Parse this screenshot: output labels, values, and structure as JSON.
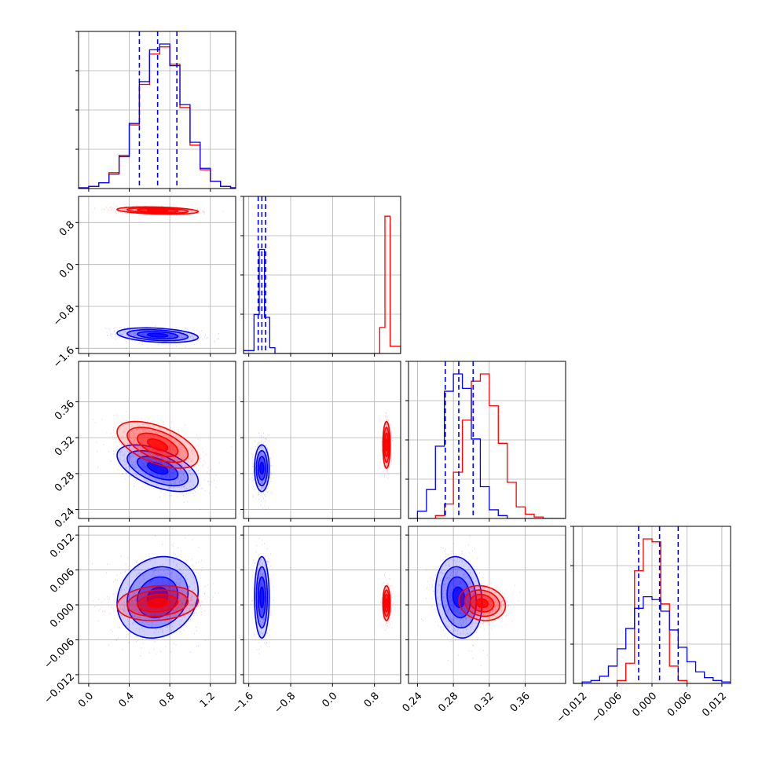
{
  "colors": {
    "series_a": "#0000ff",
    "series_b": "#ff0000",
    "grid": "#b0b0b0",
    "axes": "#000000"
  },
  "chart_data": {
    "type": "corner",
    "title": "",
    "grid": true,
    "parameters": [
      {
        "range": [
          -0.1,
          1.45
        ],
        "ticks": [
          0.0,
          0.4,
          0.8,
          1.2
        ],
        "tick_labels": [
          "0.0",
          "0.4",
          "0.8",
          "1.2"
        ]
      },
      {
        "range": [
          -1.7,
          1.3
        ],
        "ticks": [
          -1.6,
          -0.8,
          0.0,
          0.8
        ],
        "tick_labels": [
          "−1.6",
          "−0.8",
          "0.0",
          "0.8"
        ]
      },
      {
        "range": [
          0.23,
          0.405
        ],
        "ticks": [
          0.24,
          0.28,
          0.32,
          0.36
        ],
        "tick_labels": [
          "0.24",
          "0.28",
          "0.32",
          "0.36"
        ]
      },
      {
        "range": [
          -0.0135,
          0.0135
        ],
        "ticks": [
          -0.012,
          -0.006,
          0.0,
          0.006,
          0.012
        ],
        "tick_labels": [
          "−0.012",
          "−0.006",
          "0.000",
          "0.006",
          "0.012"
        ]
      }
    ],
    "series": [
      {
        "color": "#0000ff",
        "means": [
          0.68,
          -1.35,
          0.286,
          0.0013
        ],
        "sds": [
          0.2,
          0.07,
          0.013,
          0.0035
        ],
        "quantiles": [
          [
            0.5,
            0.68,
            0.87
          ],
          [
            -1.42,
            -1.35,
            -1.28
          ],
          [
            0.271,
            0.286,
            0.302
          ],
          [
            -0.0023,
            0.0013,
            0.0045
          ]
        ]
      },
      {
        "color": "#ff0000",
        "means": [
          0.68,
          1.03,
          0.312,
          0.0003
        ],
        "sds": [
          0.2,
          0.035,
          0.013,
          0.0015
        ]
      }
    ],
    "correlations": {
      "0-1": -0.3,
      "0-2": -0.55,
      "0-3": 0.15,
      "1-2": 0.0,
      "1-3": 0.0,
      "2-3": -0.15
    },
    "histograms": [
      {
        "bins": [
          -0.1,
          0.0,
          0.1,
          0.2,
          0.3,
          0.4,
          0.5,
          0.6,
          0.7,
          0.8,
          0.9,
          1.0,
          1.1,
          1.2,
          1.3,
          1.4,
          1.45
        ],
        "a": [
          0.005,
          0.015,
          0.04,
          0.1,
          0.22,
          0.45,
          0.74,
          0.96,
          1.0,
          0.85,
          0.58,
          0.32,
          0.14,
          0.05,
          0.015,
          0.005
        ],
        "b": [
          0.005,
          0.015,
          0.04,
          0.11,
          0.23,
          0.44,
          0.72,
          0.93,
          0.98,
          0.86,
          0.56,
          0.3,
          0.13,
          0.05,
          0.015,
          0.005
        ]
      },
      {
        "bins": [
          -1.7,
          -1.5,
          -1.4,
          -1.3,
          -1.2,
          -1.1,
          -0.9,
          0.6,
          0.9,
          1.0,
          1.1,
          1.3
        ],
        "a": [
          0.02,
          0.27,
          0.72,
          0.25,
          0.04,
          0.0,
          0.0,
          0.0,
          0.0,
          0.0,
          0.0
        ],
        "b": [
          0.0,
          0.0,
          0.0,
          0.0,
          0.0,
          0.0,
          0.0,
          0.0,
          0.18,
          0.95,
          0.05
        ]
      },
      {
        "bins": [
          0.23,
          0.24,
          0.25,
          0.26,
          0.27,
          0.28,
          0.29,
          0.3,
          0.31,
          0.32,
          0.33,
          0.34,
          0.35,
          0.36,
          0.37,
          0.38,
          0.39,
          0.405
        ],
        "a": [
          0.0,
          0.05,
          0.2,
          0.5,
          0.88,
          1.0,
          0.9,
          0.55,
          0.22,
          0.06,
          0.02,
          0.0,
          0.0,
          0.0,
          0.0,
          0.0,
          0.0
        ],
        "b": [
          0.0,
          0.0,
          0.0,
          0.02,
          0.1,
          0.32,
          0.68,
          0.95,
          1.0,
          0.78,
          0.52,
          0.25,
          0.08,
          0.03,
          0.01,
          0.0,
          0.0
        ]
      },
      {
        "bins": [
          -0.0135,
          -0.012,
          -0.0105,
          -0.009,
          -0.0075,
          -0.006,
          -0.0045,
          -0.003,
          -0.0015,
          0.0,
          0.0015,
          0.003,
          0.0045,
          0.006,
          0.0075,
          0.009,
          0.0105,
          0.012,
          0.0135
        ],
        "a": [
          0.0,
          0.01,
          0.02,
          0.05,
          0.12,
          0.24,
          0.38,
          0.52,
          0.6,
          0.58,
          0.5,
          0.37,
          0.25,
          0.15,
          0.08,
          0.04,
          0.02,
          0.01
        ],
        "b": [
          0.0,
          0.0,
          0.0,
          0.0,
          0.0,
          0.02,
          0.14,
          0.78,
          1.0,
          0.98,
          0.55,
          0.12,
          0.02,
          0.0,
          0.0,
          0.0,
          0.0,
          0.0
        ]
      }
    ]
  }
}
